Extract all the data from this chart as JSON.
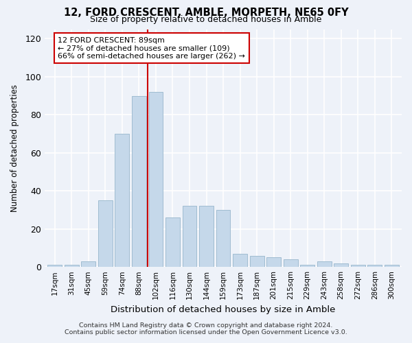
{
  "title": "12, FORD CRESCENT, AMBLE, MORPETH, NE65 0FY",
  "subtitle": "Size of property relative to detached houses in Amble",
  "xlabel": "Distribution of detached houses by size in Amble",
  "ylabel": "Number of detached properties",
  "bar_labels": [
    "17sqm",
    "31sqm",
    "45sqm",
    "59sqm",
    "74sqm",
    "88sqm",
    "102sqm",
    "116sqm",
    "130sqm",
    "144sqm",
    "159sqm",
    "173sqm",
    "187sqm",
    "201sqm",
    "215sqm",
    "229sqm",
    "243sqm",
    "258sqm",
    "272sqm",
    "286sqm",
    "300sqm"
  ],
  "bar_values": [
    1,
    1,
    3,
    35,
    70,
    90,
    92,
    26,
    32,
    32,
    30,
    7,
    6,
    5,
    4,
    1,
    3,
    2,
    1,
    1,
    1
  ],
  "bar_color": "#c5d8ea",
  "bar_edge_color": "#a0bcd0",
  "vline_color": "#cc0000",
  "annotation_title": "12 FORD CRESCENT: 89sqm",
  "annotation_line1": "← 27% of detached houses are smaller (109)",
  "annotation_line2": "66% of semi-detached houses are larger (262) →",
  "ylim": [
    0,
    125
  ],
  "yticks": [
    0,
    20,
    40,
    60,
    80,
    100,
    120
  ],
  "background_color": "#eef2f9",
  "grid_color": "#ffffff",
  "footer_line1": "Contains HM Land Registry data © Crown copyright and database right 2024.",
  "footer_line2": "Contains public sector information licensed under the Open Government Licence v3.0."
}
